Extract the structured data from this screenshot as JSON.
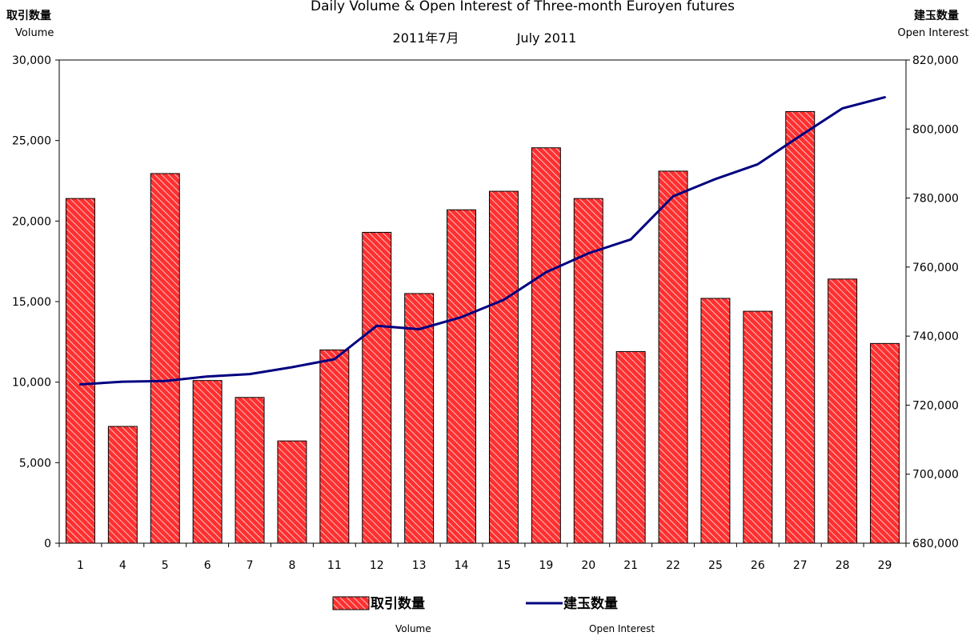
{
  "chart_data": {
    "type": "bar",
    "title": "Daily Volume & Open Interest of Three-month Euroyen futures",
    "subtitle_jp": "2011年7月",
    "subtitle_en": "July 2011",
    "left_axis": {
      "label_jp": "取引数量",
      "label_en": "Volume",
      "range": [
        0,
        30000
      ],
      "ticks": [
        0,
        5000,
        10000,
        15000,
        20000,
        25000,
        30000
      ],
      "tick_labels": [
        "0",
        "5,000",
        "10,000",
        "15,000",
        "20,000",
        "25,000",
        "30,000"
      ]
    },
    "right_axis": {
      "label_jp": "建玉数量",
      "label_en": "Open Interest",
      "range": [
        680000,
        820000
      ],
      "ticks": [
        680000,
        700000,
        720000,
        740000,
        760000,
        780000,
        800000,
        820000
      ],
      "tick_labels": [
        "680,000",
        "700,000",
        "720,000",
        "740,000",
        "760,000",
        "780,000",
        "800,000",
        "820,000"
      ]
    },
    "categories": [
      "1",
      "4",
      "5",
      "6",
      "7",
      "8",
      "11",
      "12",
      "13",
      "14",
      "15",
      "19",
      "20",
      "21",
      "22",
      "25",
      "26",
      "27",
      "28",
      "29"
    ],
    "series": [
      {
        "name": "取引数量",
        "name_en": "Volume",
        "type": "bar",
        "axis": "left",
        "color": "#ff2b2b",
        "values": [
          21400,
          7250,
          22950,
          10100,
          9050,
          6350,
          12000,
          19300,
          15500,
          20700,
          21850,
          24550,
          21400,
          11900,
          23100,
          15200,
          14400,
          26800,
          16400,
          12400
        ]
      },
      {
        "name": "建玉数量",
        "name_en": "Open Interest",
        "type": "line",
        "axis": "right",
        "color": "#000080",
        "values": [
          726000,
          726800,
          727000,
          728300,
          729000,
          731000,
          733300,
          743000,
          742000,
          745500,
          750500,
          758500,
          764000,
          768000,
          780500,
          785500,
          789800,
          798000,
          806000,
          809200
        ]
      }
    ],
    "legend_position": "bottom",
    "grid": false
  }
}
